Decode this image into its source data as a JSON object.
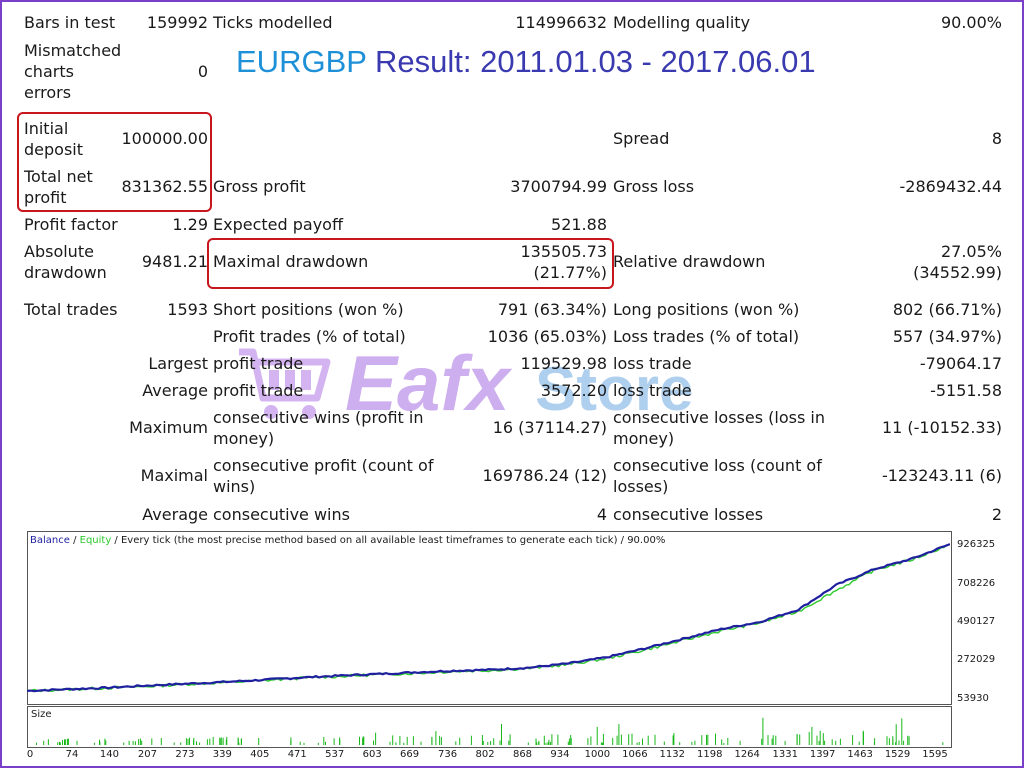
{
  "report": {
    "title_symbol": "EURGBP",
    "title_rest": "Result: 2011.01.03 - 2017.06.01",
    "bars_in_test_label": "Bars in test",
    "bars_in_test": "159992",
    "ticks_modelled_label": "Ticks modelled",
    "ticks_modelled": "114996632",
    "modelling_quality_label": "Modelling quality",
    "modelling_quality": "90.00%",
    "mismatched_label_1": "Mismatched",
    "mismatched_label_2": "charts",
    "mismatched_label_3": "errors",
    "mismatched": "0",
    "initial_deposit_label_1": "Initial",
    "initial_deposit_label_2": "deposit",
    "initial_deposit": "100000.00",
    "spread_label": "Spread",
    "spread": "8",
    "total_net_profit_label_1": "Total net",
    "total_net_profit_label_2": "profit",
    "total_net_profit": "831362.55",
    "gross_profit_label": "Gross profit",
    "gross_profit": "3700794.99",
    "gross_loss_label": "Gross loss",
    "gross_loss": "-2869432.44",
    "profit_factor_label": "Profit factor",
    "profit_factor": "1.29",
    "expected_payoff_label": "Expected payoff",
    "expected_payoff": "521.88",
    "absolute_drawdown_label_1": "Absolute",
    "absolute_drawdown_label_2": "drawdown",
    "absolute_drawdown": "9481.21",
    "maximal_drawdown_label": "Maximal drawdown",
    "maximal_drawdown_1": "135505.73",
    "maximal_drawdown_2": "(21.77%)",
    "relative_drawdown_label": "Relative drawdown",
    "relative_drawdown_1": "27.05%",
    "relative_drawdown_2": "(34552.99)",
    "total_trades_label": "Total trades",
    "total_trades": "1593",
    "short_positions_label": "Short positions (won %)",
    "short_positions": "791 (63.34%)",
    "long_positions_label": "Long positions (won %)",
    "long_positions": "802 (66.71%)",
    "profit_trades_label": "Profit trades (% of total)",
    "profit_trades": "1036 (65.03%)",
    "loss_trades_label": "Loss trades (% of total)",
    "loss_trades": "557 (34.97%)",
    "largest_label": "Largest",
    "largest_profit_label": "profit trade",
    "largest_profit": "119529.98",
    "largest_loss_label": "loss trade",
    "largest_loss": "-79064.17",
    "average_label": "Average",
    "average_profit_label": "profit trade",
    "average_profit": "3572.20",
    "average_loss_label": "loss trade",
    "average_loss": "-5151.58",
    "maximum_label": "Maximum",
    "max_cons_wins_label_1": "consecutive wins (profit in",
    "max_cons_wins_label_2": "money)",
    "max_cons_wins": "16 (37114.27)",
    "max_cons_losses_label_1": "consecutive losses (loss in",
    "max_cons_losses_label_2": "money)",
    "max_cons_losses": "11 (-10152.33)",
    "maximal_label": "Maximal",
    "maximal_cons_profit_label_1": "consecutive profit (count of",
    "maximal_cons_profit_label_2": "wins)",
    "maximal_cons_profit": "169786.24 (12)",
    "maximal_cons_loss_label_1": "consecutive loss (count of",
    "maximal_cons_loss_label_2": "losses)",
    "maximal_cons_loss": "-123243.11 (6)",
    "average2_label": "Average",
    "avg_cons_wins_label": "consecutive wins",
    "avg_cons_wins": "4",
    "avg_cons_losses_label": "consecutive losses",
    "avg_cons_losses": "2"
  },
  "watermark": {
    "text_1": "Eafx",
    "text_2": "Store"
  },
  "colors": {
    "balance": "#1f1fa0",
    "equity": "#2cc92c",
    "size_bars": "#18b818",
    "title_symbol": "#1e90d8",
    "title_result": "#3a3ab0",
    "highlight": "#c8161d"
  },
  "chart_data": {
    "type": "line",
    "legend_balance": "Balance",
    "legend_sep1": " / ",
    "legend_equity": "Equity",
    "legend_rest": " / Every tick (the most precise method based on all available least timeframes to generate each tick) / 90.00%",
    "size_label": "Size",
    "ylim": [
      53930,
      926325
    ],
    "xlim": [
      0,
      1593
    ],
    "y_ticks": [
      "926325",
      "708226",
      "490127",
      "272029",
      "53930"
    ],
    "x_ticks": [
      "0",
      "74",
      "140",
      "207",
      "273",
      "339",
      "405",
      "471",
      "537",
      "603",
      "669",
      "736",
      "802",
      "868",
      "934",
      "1000",
      "1066",
      "1132",
      "1198",
      "1264",
      "1331",
      "1397",
      "1463",
      "1529",
      "1595"
    ],
    "series": [
      {
        "name": "Balance",
        "x": [
          0,
          74,
          140,
          207,
          273,
          339,
          405,
          471,
          537,
          603,
          669,
          736,
          802,
          868,
          934,
          1000,
          1066,
          1132,
          1198,
          1264,
          1331,
          1397,
          1463,
          1529,
          1593
        ],
        "values": [
          100000,
          110000,
          118000,
          130000,
          140000,
          150000,
          162000,
          175000,
          186000,
          195000,
          205000,
          214000,
          220000,
          232000,
          255000,
          290000,
          340000,
          395000,
          450000,
          490000,
          560000,
          700000,
          790000,
          850000,
          931363
        ]
      },
      {
        "name": "Equity",
        "x": [
          0,
          74,
          140,
          207,
          273,
          339,
          405,
          471,
          537,
          603,
          669,
          736,
          802,
          868,
          934,
          1000,
          1066,
          1132,
          1198,
          1264,
          1331,
          1397,
          1463,
          1529,
          1593
        ],
        "values": [
          100000,
          108000,
          117000,
          125000,
          138000,
          147000,
          158000,
          172000,
          182000,
          192000,
          200000,
          210000,
          217000,
          228000,
          250000,
          283000,
          332000,
          385000,
          440000,
          485000,
          550000,
          670000,
          785000,
          845000,
          929000
        ]
      }
    ]
  }
}
